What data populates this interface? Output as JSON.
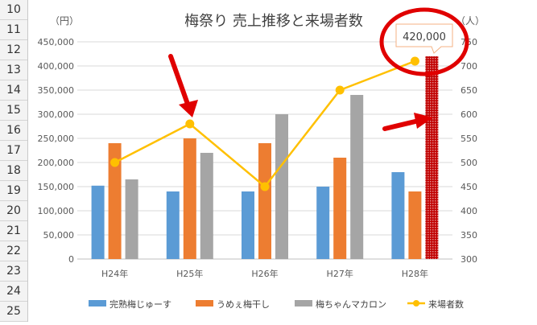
{
  "row_numbers": [
    "10",
    "11",
    "12",
    "13",
    "14",
    "15",
    "16",
    "17",
    "18",
    "19",
    "20",
    "21",
    "22",
    "23",
    "24",
    "25"
  ],
  "chart_data": {
    "type": "bar",
    "title": "梅祭り 売上推移と来場者数",
    "y_left_unit": "（円）",
    "y_right_unit": "（人）",
    "categories": [
      "H24年",
      "H25年",
      "H26年",
      "H27年",
      "H28年"
    ],
    "ylim": [
      0,
      450000
    ],
    "y_left_ticks": [
      "0",
      "50,000",
      "100,000",
      "150,000",
      "200,000",
      "250,000",
      "300,000",
      "350,000",
      "400,000",
      "450,000"
    ],
    "y2lim": [
      300,
      750
    ],
    "y_right_ticks": [
      "300",
      "350",
      "400",
      "450",
      "500",
      "550",
      "600",
      "650",
      "700",
      "750"
    ],
    "grid": true,
    "legend_position": "bottom",
    "series": [
      {
        "name": "完熟梅じゅーす",
        "type": "bar",
        "axis": "left",
        "color": "#5b9bd5",
        "values": [
          152000,
          140000,
          140000,
          150000,
          180000
        ]
      },
      {
        "name": "うめぇ梅干し",
        "type": "bar",
        "axis": "left",
        "color": "#ed7d31",
        "values": [
          240000,
          250000,
          240000,
          210000,
          140000
        ]
      },
      {
        "name": "梅ちゃんマカロン",
        "type": "bar",
        "axis": "left",
        "color": "#a5a5a5",
        "values": [
          165000,
          220000,
          300000,
          340000,
          420000
        ]
      },
      {
        "name": "来場者数",
        "type": "line",
        "axis": "right",
        "color": "#ffc000",
        "values": [
          500,
          580,
          450,
          650,
          710
        ]
      }
    ],
    "highlight": {
      "bar_color": "#c00000",
      "callout": "420,000",
      "annotation_color": "#e00000"
    }
  }
}
